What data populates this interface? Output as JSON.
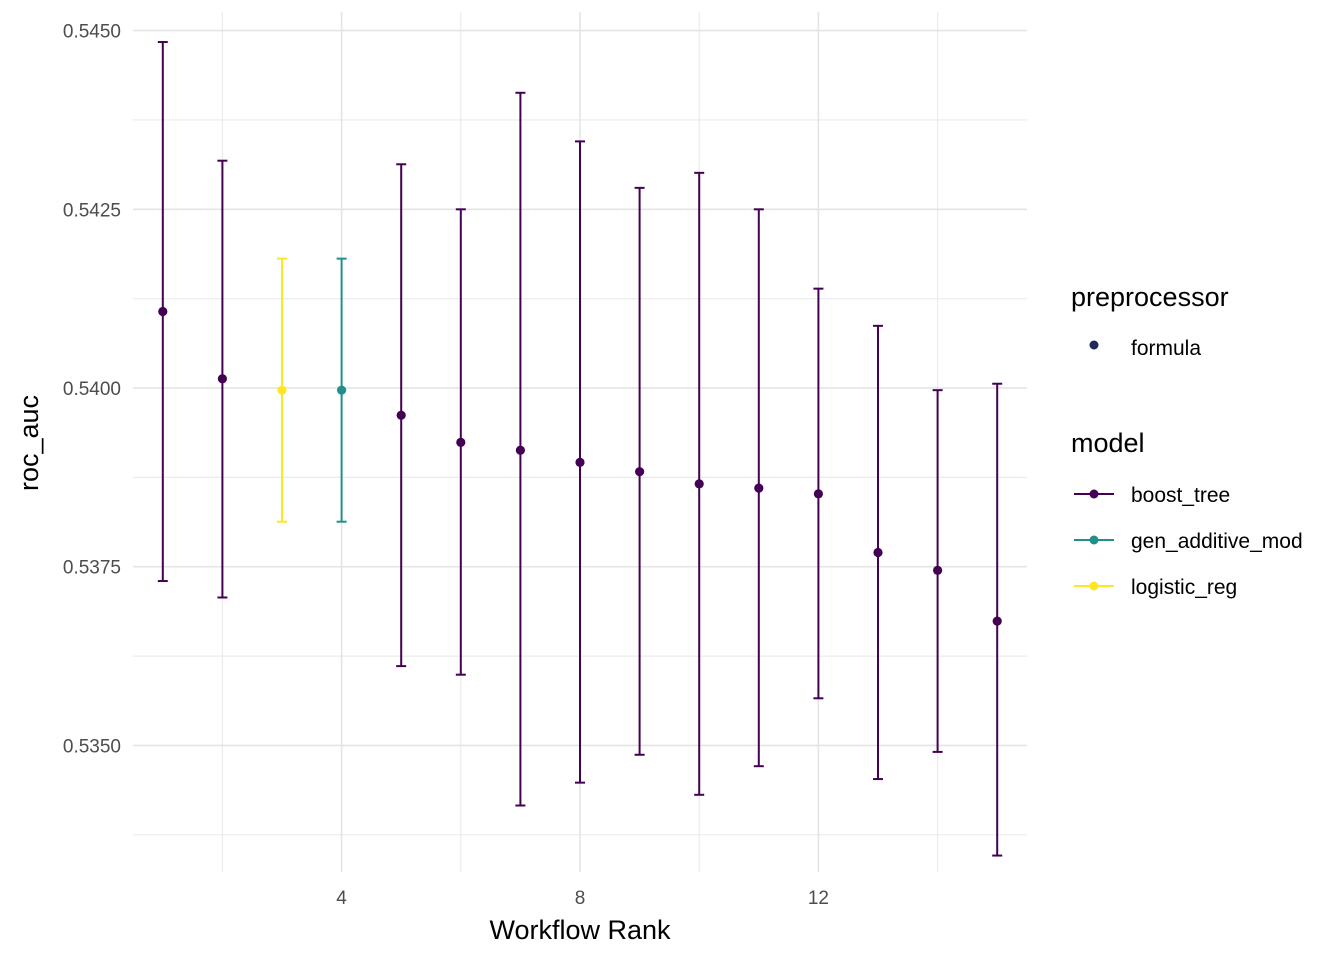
{
  "chart_data": {
    "type": "scatter",
    "xlabel": "Workflow Rank",
    "ylabel": "roc_auc",
    "xlim": [
      0.5,
      15.5
    ],
    "ylim": [
      0.53323,
      0.54526
    ],
    "xticks": [
      4,
      8,
      12
    ],
    "xtick_labels": [
      "4",
      "8",
      "12"
    ],
    "yticks": [
      0.535,
      0.5375,
      0.54,
      0.5425,
      0.545
    ],
    "ytick_labels": [
      "0.5350",
      "0.5375",
      "0.5400",
      "0.5425",
      "0.5450"
    ],
    "grid": true,
    "legend_position": "right",
    "colors": {
      "boost_tree": "#440154",
      "gen_additive_mod": "#21908C",
      "logistic_reg": "#FDE725",
      "formula": "#1f2a5c"
    },
    "legends": {
      "preprocessor": {
        "title": "preprocessor",
        "items": [
          {
            "label": "formula",
            "key": "formula"
          }
        ]
      },
      "model": {
        "title": "model",
        "items": [
          {
            "label": "boost_tree",
            "key": "boost_tree"
          },
          {
            "label": "gen_additive_mod",
            "key": "gen_additive_mod"
          },
          {
            "label": "logistic_reg",
            "key": "logistic_reg"
          }
        ]
      }
    },
    "points": [
      {
        "rank": 1,
        "model": "boost_tree",
        "mean": 0.54107,
        "lower": 0.5373,
        "upper": 0.54484
      },
      {
        "rank": 2,
        "model": "boost_tree",
        "mean": 0.54013,
        "lower": 0.53707,
        "upper": 0.54318
      },
      {
        "rank": 3,
        "model": "logistic_reg",
        "mean": 0.53997,
        "lower": 0.53813,
        "upper": 0.54181
      },
      {
        "rank": 4,
        "model": "gen_additive_mod",
        "mean": 0.53997,
        "lower": 0.53813,
        "upper": 0.54181
      },
      {
        "rank": 5,
        "model": "boost_tree",
        "mean": 0.53962,
        "lower": 0.53611,
        "upper": 0.54313
      },
      {
        "rank": 6,
        "model": "boost_tree",
        "mean": 0.53924,
        "lower": 0.53599,
        "upper": 0.5425
      },
      {
        "rank": 7,
        "model": "boost_tree",
        "mean": 0.53913,
        "lower": 0.53416,
        "upper": 0.54413
      },
      {
        "rank": 8,
        "model": "boost_tree",
        "mean": 0.53896,
        "lower": 0.53448,
        "upper": 0.54345
      },
      {
        "rank": 9,
        "model": "boost_tree",
        "mean": 0.53883,
        "lower": 0.53487,
        "upper": 0.5428
      },
      {
        "rank": 10,
        "model": "boost_tree",
        "mean": 0.53866,
        "lower": 0.53431,
        "upper": 0.54301
      },
      {
        "rank": 11,
        "model": "boost_tree",
        "mean": 0.5386,
        "lower": 0.53471,
        "upper": 0.5425
      },
      {
        "rank": 12,
        "model": "boost_tree",
        "mean": 0.53852,
        "lower": 0.53566,
        "upper": 0.54139
      },
      {
        "rank": 13,
        "model": "boost_tree",
        "mean": 0.5377,
        "lower": 0.53453,
        "upper": 0.54087
      },
      {
        "rank": 14,
        "model": "boost_tree",
        "mean": 0.53745,
        "lower": 0.53491,
        "upper": 0.53997
      },
      {
        "rank": 15,
        "model": "boost_tree",
        "mean": 0.53674,
        "lower": 0.53346,
        "upper": 0.54006
      }
    ]
  }
}
